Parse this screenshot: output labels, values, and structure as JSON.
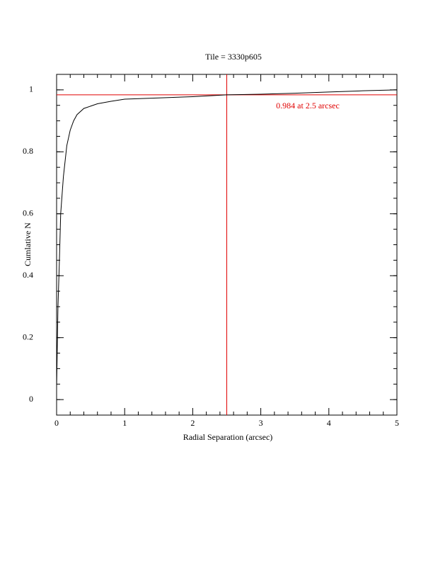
{
  "chart_data": {
    "type": "line",
    "title": "Tile = 3330p605",
    "x_label": "Radial Separation (arcsec)",
    "y_label": "Cumlative N",
    "xlim": [
      0,
      5
    ],
    "ylim": [
      -0.05,
      1.05
    ],
    "xticks": [
      0,
      1,
      2,
      3,
      4,
      5
    ],
    "yticks": [
      0,
      0.2,
      0.4,
      0.6,
      0.8,
      1
    ],
    "series": [
      {
        "color": "#000000",
        "x": [
          0,
          0.005,
          0.02,
          0.04,
          0.06,
          0.1,
          0.15,
          0.2,
          0.25,
          0.3,
          0.4,
          0.6,
          0.8,
          1.0,
          1.5,
          2.0,
          2.5,
          3.0,
          3.5,
          4.0,
          4.5,
          5.0
        ],
        "values": [
          0.04,
          0.1,
          0.3,
          0.44,
          0.6,
          0.72,
          0.82,
          0.87,
          0.9,
          0.92,
          0.94,
          0.955,
          0.963,
          0.97,
          0.974,
          0.978,
          0.984,
          0.986,
          0.989,
          0.993,
          0.997,
          1.0
        ]
      }
    ],
    "hline": 0.984,
    "vline": 2.5,
    "ref_color": "#e00000",
    "annotation": "0.984 at 2.5 arcsec"
  }
}
